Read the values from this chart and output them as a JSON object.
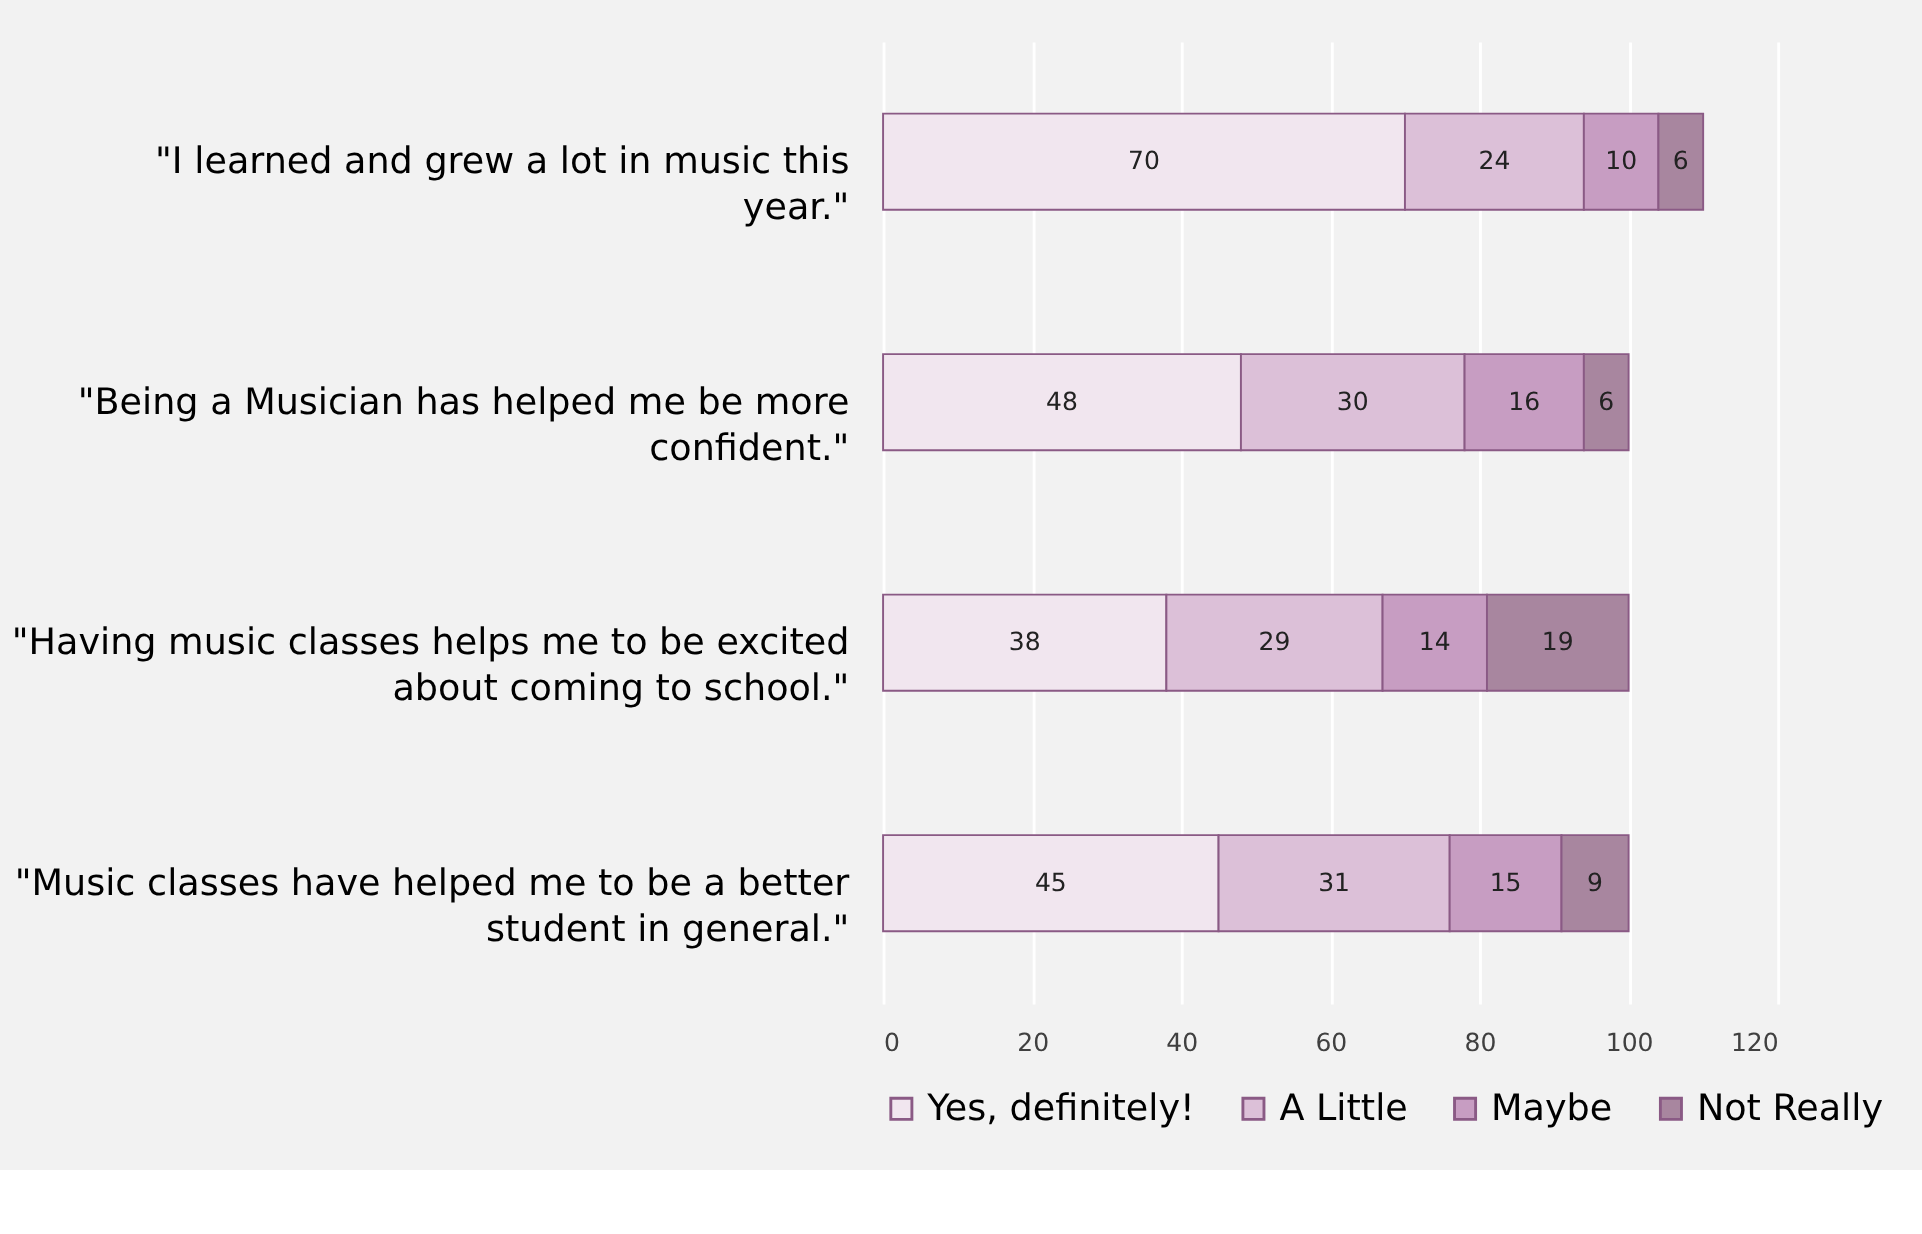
{
  "chart_data": {
    "type": "bar",
    "orientation": "horizontal",
    "stacked": true,
    "data_labels": true,
    "grid": "x",
    "legend": "bottom",
    "categories": [
      "\"I learned and grew a lot in music this year.\"",
      "\"Being a Musician has helped me be more confident.\"",
      "\"Having music classes helps me to be excited about coming to school.\"",
      "\"Music classes have helped me to be a better student in general.\""
    ],
    "series": [
      {
        "name": "Yes, definitely!",
        "color": "#f1e6ef",
        "values": [
          70,
          48,
          38,
          45
        ]
      },
      {
        "name": "A Little",
        "color": "#dcc0d8",
        "values": [
          24,
          30,
          29,
          31
        ]
      },
      {
        "name": "Maybe",
        "color": "#c79dc2",
        "values": [
          10,
          16,
          14,
          15
        ]
      },
      {
        "name": "Not Really",
        "color": "#a8869f",
        "values": [
          6,
          6,
          19,
          9
        ]
      }
    ],
    "xlim": [
      0,
      120
    ],
    "xticks": [
      0,
      20,
      40,
      60,
      80,
      100,
      120
    ]
  }
}
